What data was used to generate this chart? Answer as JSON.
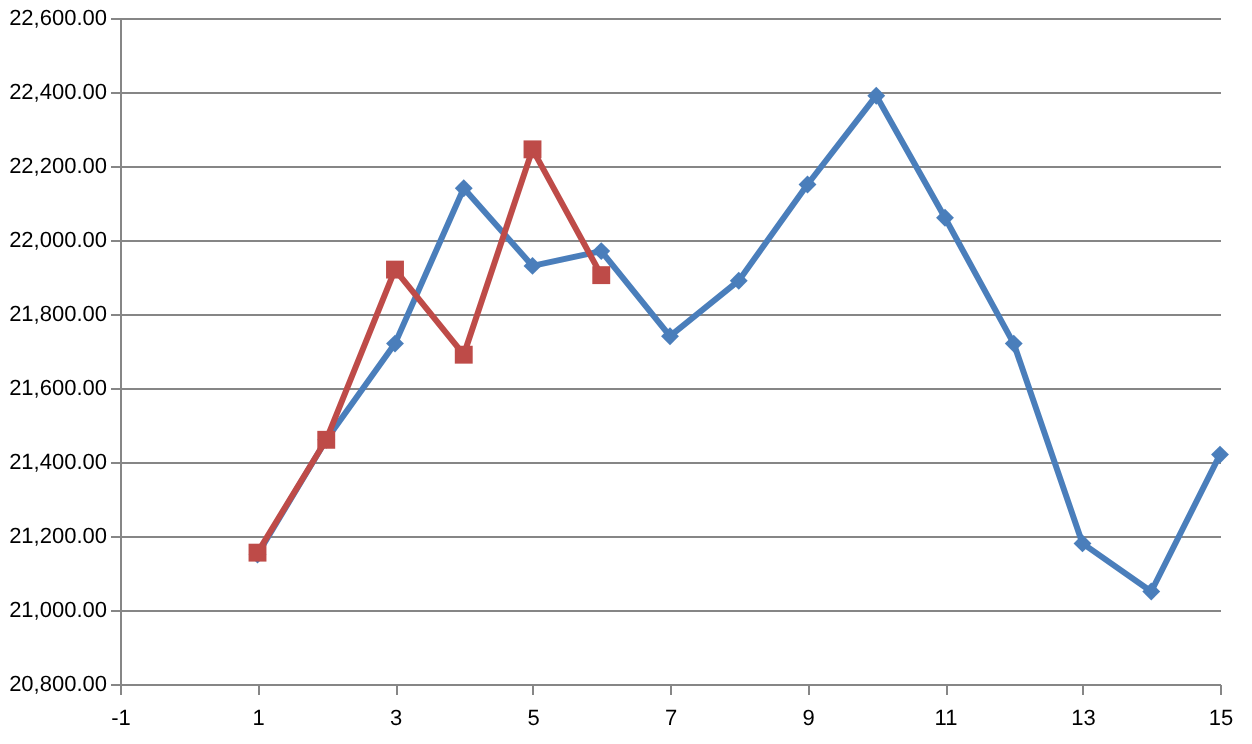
{
  "chart_data": {
    "type": "line",
    "xlim": [
      -1,
      15
    ],
    "xticks": [
      -1,
      1,
      3,
      5,
      7,
      9,
      11,
      13,
      15
    ],
    "ylim": [
      20800,
      22600
    ],
    "yticks": [
      {
        "value": 20800,
        "label": "20,800.00"
      },
      {
        "value": 21000,
        "label": "21,000.00"
      },
      {
        "value": 21200,
        "label": "21,200.00"
      },
      {
        "value": 21400,
        "label": "21,400.00"
      },
      {
        "value": 21600,
        "label": "21,600.00"
      },
      {
        "value": 21800,
        "label": "21,800.00"
      },
      {
        "value": 22000,
        "label": "22,000.00"
      },
      {
        "value": 22200,
        "label": "22,200.00"
      },
      {
        "value": 22400,
        "label": "22,400.00"
      },
      {
        "value": 22600,
        "label": "22,600.00"
      }
    ],
    "grid": "y",
    "legend": false,
    "line_style": "solid",
    "series": [
      {
        "color": "#4a7ebb",
        "marker": "diamond",
        "x": [
          1,
          2,
          3,
          4,
          5,
          6,
          7,
          8,
          9,
          10,
          11,
          12,
          13,
          14,
          15
        ],
        "values": [
          21150,
          21460,
          21720,
          22140,
          21930,
          21970,
          21740,
          21890,
          22150,
          22390,
          22060,
          21720,
          21180,
          21050,
          21420
        ]
      },
      {
        "color": "#be4b48",
        "marker": "square",
        "x": [
          1,
          2,
          3,
          4,
          5,
          6
        ],
        "values": [
          21155,
          21460,
          21920,
          21690,
          22245,
          21905
        ]
      }
    ]
  }
}
